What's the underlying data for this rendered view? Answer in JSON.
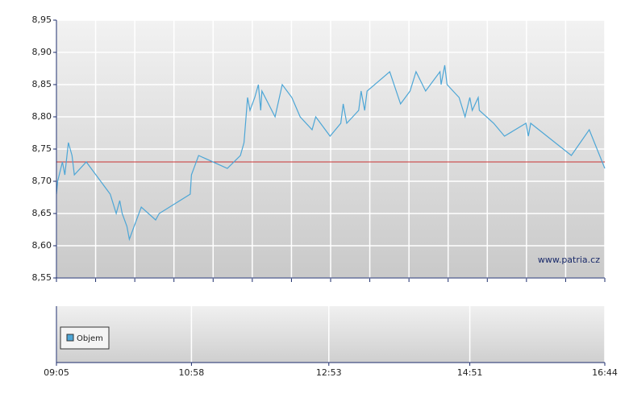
{
  "chart_data": {
    "type": "line",
    "x": [
      "09:05",
      "09:06",
      "09:10",
      "09:12",
      "09:15",
      "09:18",
      "09:20",
      "09:30",
      "09:50",
      "09:55",
      "09:58",
      "10:00",
      "10:04",
      "10:06",
      "10:10",
      "10:16",
      "10:28",
      "10:31",
      "10:57",
      "10:58",
      "11:04",
      "11:28",
      "11:39",
      "11:42",
      "11:45",
      "11:47",
      "11:51",
      "11:54",
      "11:56",
      "11:57",
      "12:08",
      "12:14",
      "12:22",
      "12:29",
      "12:39",
      "12:42",
      "12:54",
      "13:03",
      "13:05",
      "13:08",
      "13:18",
      "13:20",
      "13:23",
      "13:25",
      "13:44",
      "13:53",
      "14:01",
      "14:06",
      "14:14",
      "14:26",
      "14:27",
      "14:30",
      "14:32",
      "14:42",
      "14:47",
      "14:51",
      "14:53",
      "14:58",
      "14:59",
      "15:11",
      "15:20",
      "15:38",
      "15:40",
      "15:42",
      "16:16",
      "16:31",
      "16:44"
    ],
    "values": [
      8.68,
      8.7,
      8.73,
      8.71,
      8.76,
      8.74,
      8.71,
      8.73,
      8.68,
      8.65,
      8.67,
      8.65,
      8.63,
      8.61,
      8.63,
      8.66,
      8.64,
      8.65,
      8.68,
      8.71,
      8.74,
      8.72,
      8.74,
      8.76,
      8.83,
      8.81,
      8.83,
      8.85,
      8.81,
      8.84,
      8.8,
      8.85,
      8.83,
      8.8,
      8.78,
      8.8,
      8.77,
      8.79,
      8.82,
      8.79,
      8.81,
      8.84,
      8.81,
      8.84,
      8.87,
      8.82,
      8.84,
      8.87,
      8.84,
      8.87,
      8.85,
      8.88,
      8.85,
      8.83,
      8.8,
      8.83,
      8.81,
      8.83,
      8.81,
      8.79,
      8.77,
      8.79,
      8.77,
      8.79,
      8.74,
      8.78,
      8.72
    ],
    "color": "#4da6d6",
    "reference_line": 8.73,
    "reference_color": "#c83232",
    "ylim": [
      8.55,
      8.95
    ],
    "yticks": [
      {
        "value": 8.55,
        "label": "8,55"
      },
      {
        "value": 8.6,
        "label": "8,60"
      },
      {
        "value": 8.65,
        "label": "8,65"
      },
      {
        "value": 8.7,
        "label": "8,70"
      },
      {
        "value": 8.75,
        "label": "8,75"
      },
      {
        "value": 8.8,
        "label": "8,80"
      },
      {
        "value": 8.85,
        "label": "8,85"
      },
      {
        "value": 8.9,
        "label": "8,90"
      },
      {
        "value": 8.95,
        "label": "8,95"
      }
    ],
    "xlim": [
      "09:05",
      "16:44"
    ],
    "xticks": [
      "09:05",
      "10:58",
      "12:53",
      "14:51",
      "16:44"
    ],
    "grid": true,
    "watermark": "www.patria.cz",
    "volume_legend": "Objem"
  }
}
